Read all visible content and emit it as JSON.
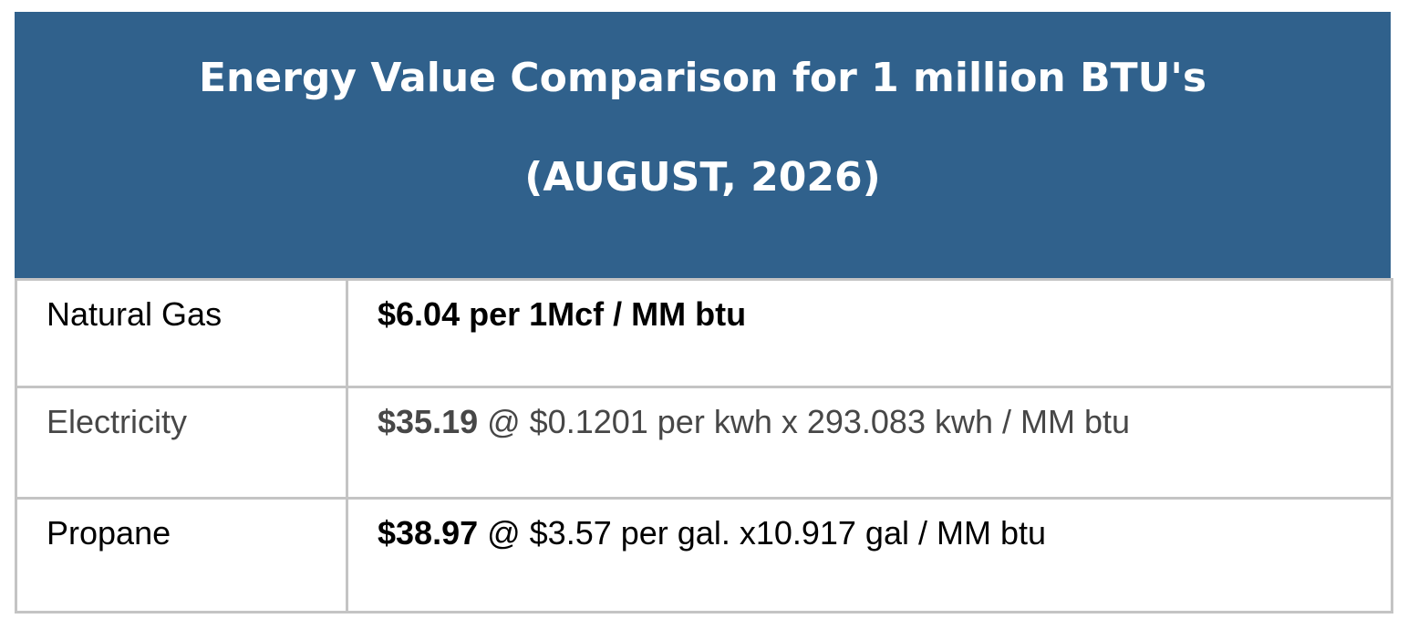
{
  "header": {
    "title_lines": [
      "Energy Value Comparison for 1 million BTU's",
      "(AUGUST, 2026)"
    ]
  },
  "table": {
    "rows": [
      {
        "label": "Natural Gas",
        "price": "$6.04 per 1Mcf / MM btu"
      },
      {
        "label": "Electricity",
        "price": "$35.19",
        "detail": "@ $0.1201 per kwh x 293.083 kwh / MM btu"
      },
      {
        "label": "Propane",
        "price": "$38.97",
        "detail": "@ $3.57 per gal. x10.917 gal / MM btu"
      }
    ]
  }
}
